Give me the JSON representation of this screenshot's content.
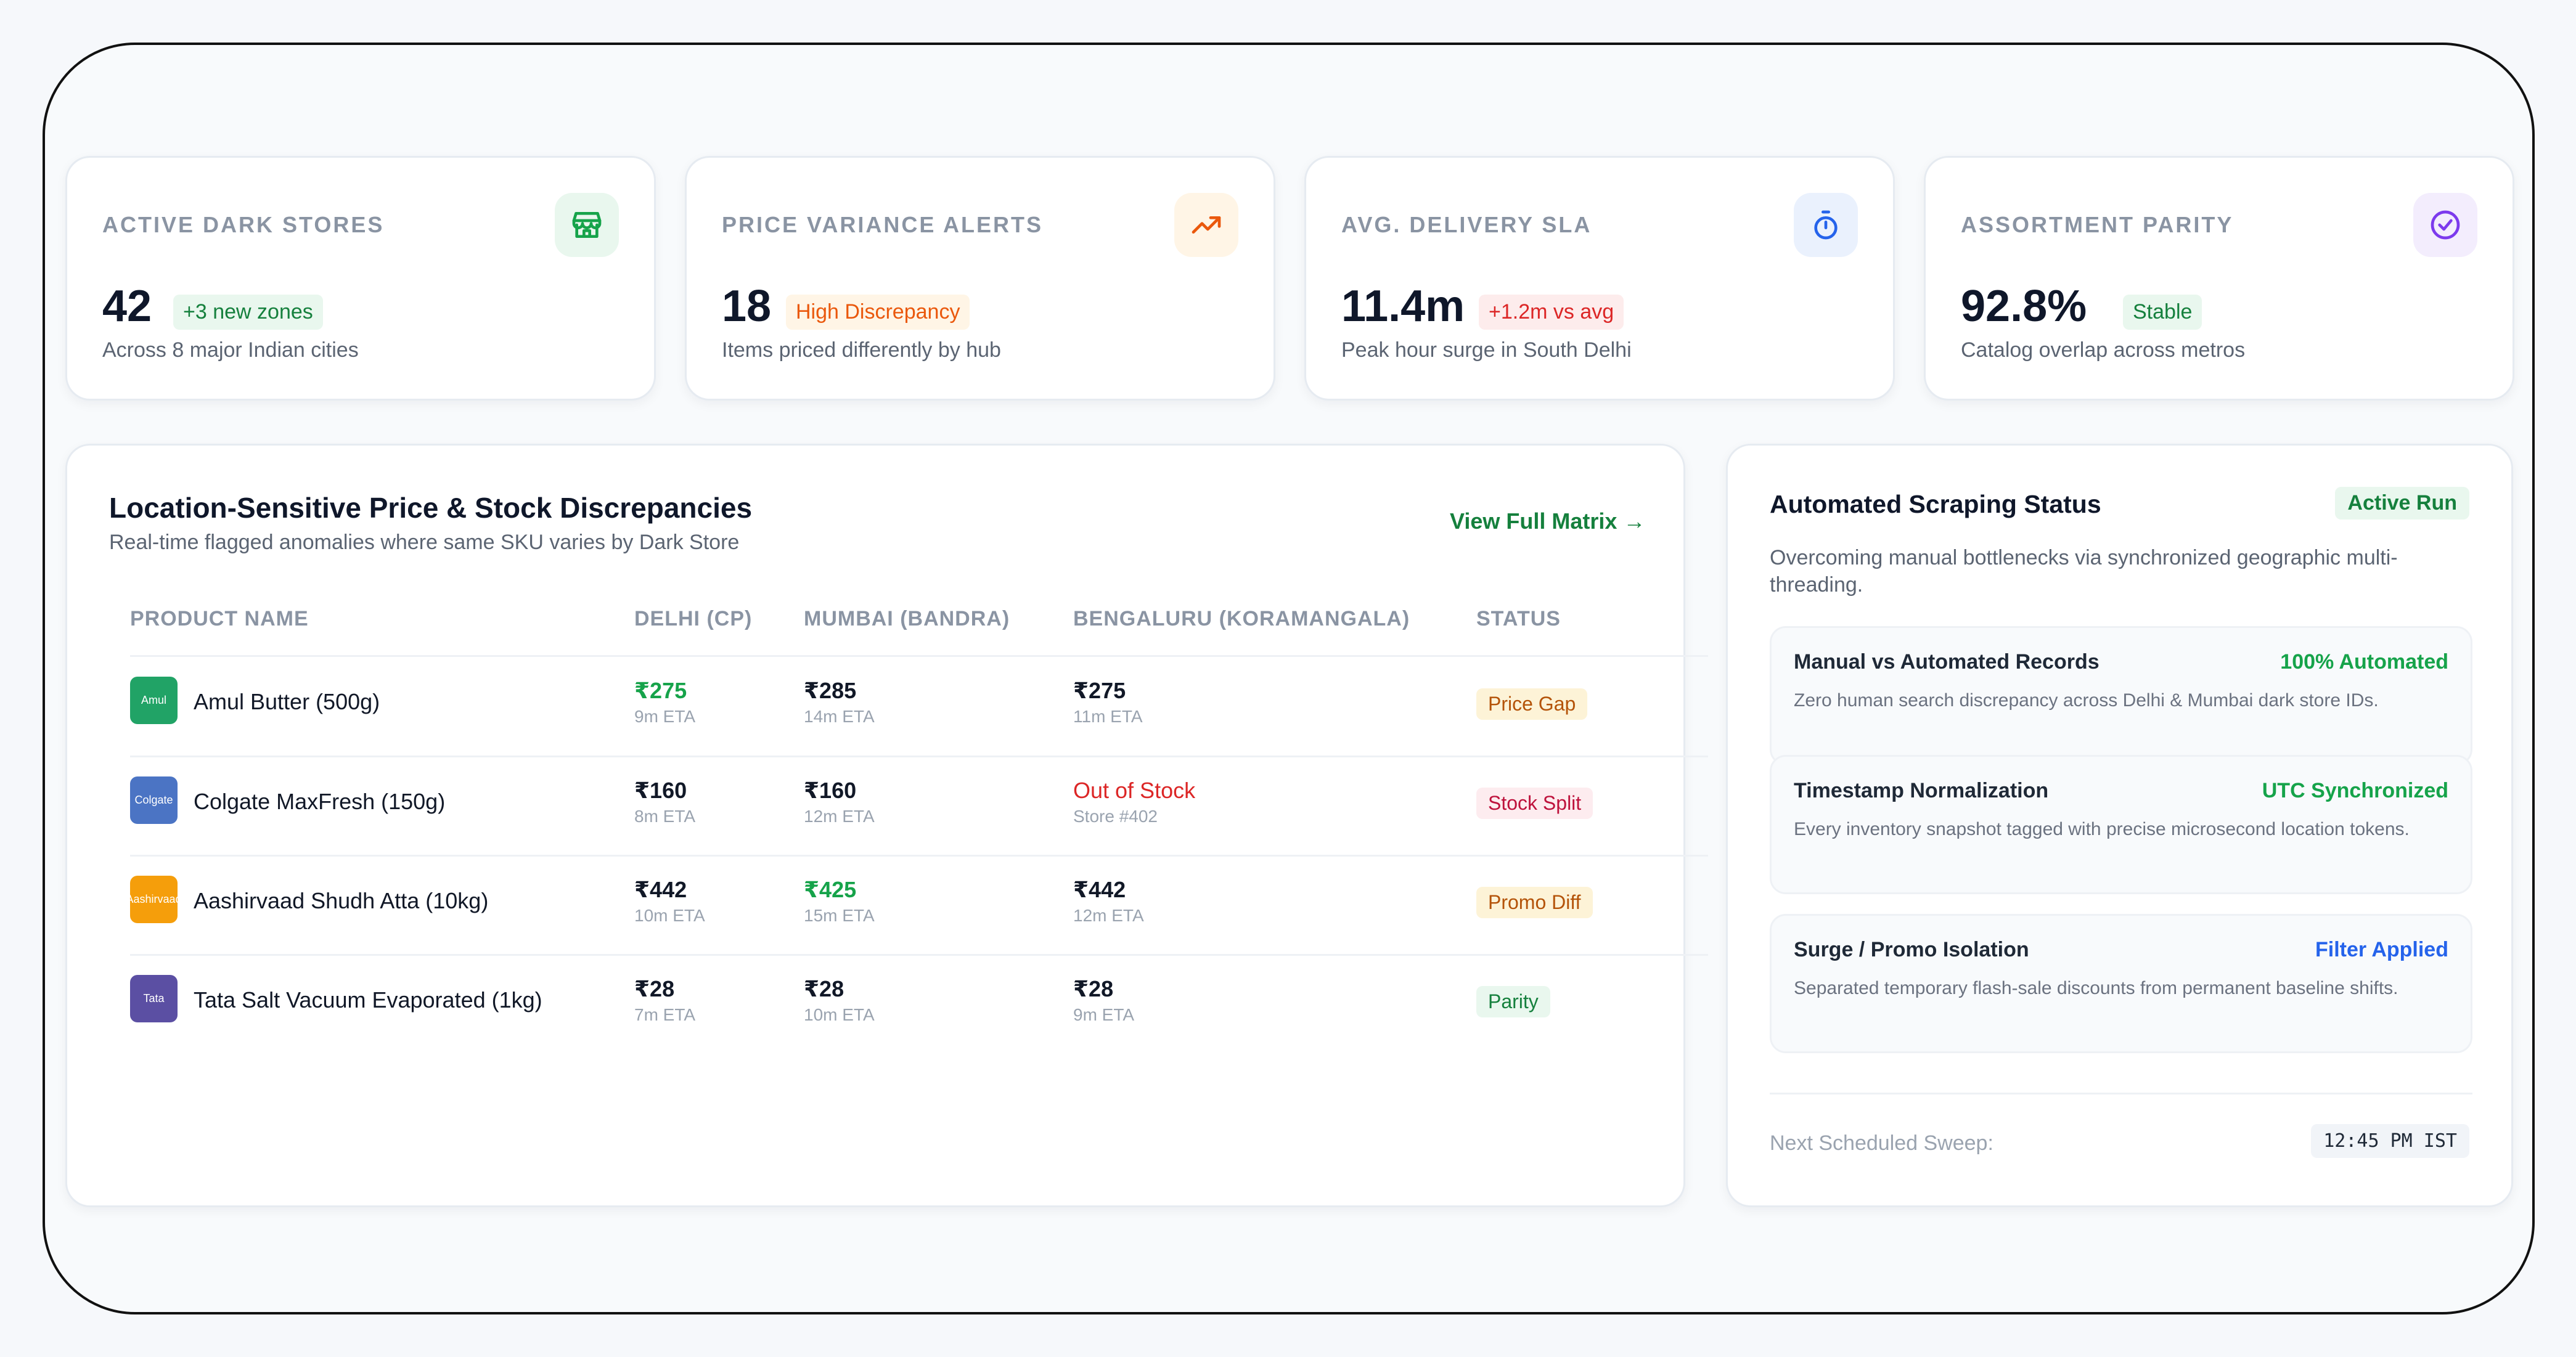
{
  "kpis": [
    {
      "label": "ACTIVE DARK STORES",
      "value": "42",
      "badge": "+3 new zones",
      "desc": "Across 8 major Indian cities",
      "icon": "store-icon",
      "color": "#16a34a"
    },
    {
      "label": "PRICE VARIANCE ALERTS",
      "value": "18",
      "badge": "High Discrepancy",
      "desc": "Items priced differently by hub",
      "icon": "trending-up-icon",
      "color": "#ea580c"
    },
    {
      "label": "AVG. DELIVERY SLA",
      "value": "11.4m",
      "badge": "+1.2m vs avg",
      "desc": "Peak hour surge in South Delhi",
      "icon": "stopwatch-icon",
      "color": "#2563eb"
    },
    {
      "label": "ASSORTMENT PARITY",
      "value": "92.8%",
      "badge": "Stable",
      "desc": "Catalog overlap across metros",
      "icon": "check-circle-icon",
      "color": "#7c3aed"
    }
  ],
  "discrepancies": {
    "title": "Location-Sensitive Price & Stock Discrepancies",
    "subtitle": "Real-time flagged anomalies where same SKU varies by Dark Store",
    "view_link": "View Full Matrix →",
    "columns": [
      "PRODUCT NAME",
      "DELHI (CP)",
      "MUMBAI (BANDRA)",
      "BENGALURU (KORAMANGALA)",
      "STATUS"
    ],
    "rows": [
      {
        "logo": "Amul",
        "name": "Amul Butter (500g)",
        "c1": "₹275",
        "e1": "9m ETA",
        "c2": "₹285",
        "e2": "14m ETA",
        "c3": "₹275",
        "e3": "11m ETA",
        "status": "Price Gap"
      },
      {
        "logo": "Colgate",
        "name": "Colgate MaxFresh (150g)",
        "c1": "₹160",
        "e1": "8m ETA",
        "c2": "₹160",
        "e2": "12m ETA",
        "c3": "Out of Stock",
        "e3": "Store #402",
        "status": "Stock Split"
      },
      {
        "logo": "Aashirvaad",
        "name": "Aashirvaad Shudh Atta (10kg)",
        "c1": "₹442",
        "e1": "10m ETA",
        "c2": "₹425",
        "e2": "15m ETA",
        "c3": "₹442",
        "e3": "12m ETA",
        "status": "Promo Diff"
      },
      {
        "logo": "Tata",
        "name": "Tata Salt Vacuum Evaporated (1kg)",
        "c1": "₹28",
        "e1": "7m ETA",
        "c2": "₹28",
        "e2": "10m ETA",
        "c3": "₹28",
        "e3": "9m ETA",
        "status": "Parity"
      }
    ]
  },
  "scraping": {
    "title": "Automated Scraping Status",
    "badge": "Active Run",
    "desc": "Overcoming manual bottlenecks via synchronized geographic multi-threading.",
    "features": [
      {
        "name": "Manual vs Automated Records",
        "tag": "100% Automated",
        "desc": "Zero human search discrepancy across Delhi & Mumbai dark store IDs."
      },
      {
        "name": "Timestamp Normalization",
        "tag": "UTC Synchronized",
        "desc": "Every inventory snapshot tagged with precise microsecond location tokens."
      },
      {
        "name": "Surge / Promo Isolation",
        "tag": "Filter Applied",
        "desc": "Separated temporary flash-sale discounts from permanent baseline shifts."
      }
    ],
    "sweep_label": "Next Scheduled Sweep:",
    "sweep_time": "12:45 PM IST"
  }
}
